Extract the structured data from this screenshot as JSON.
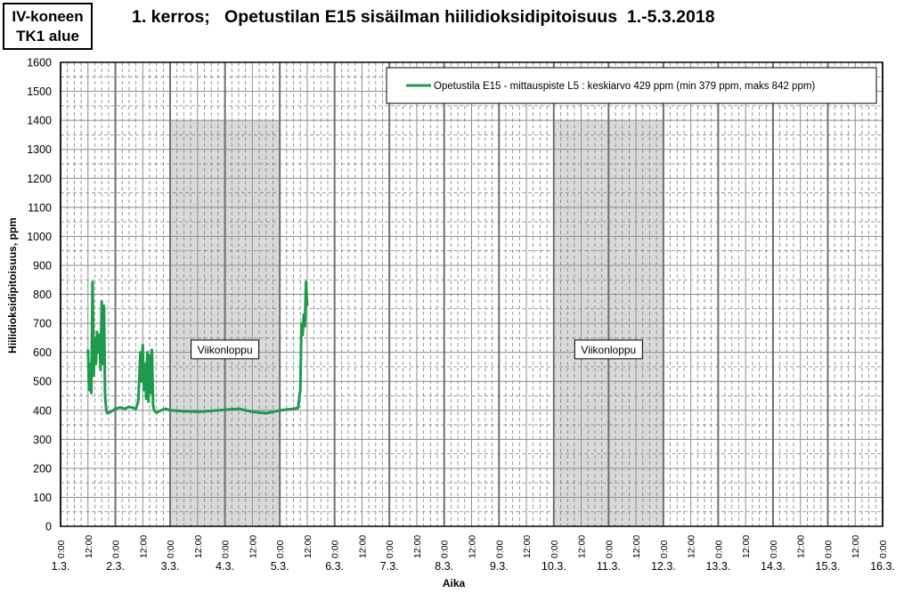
{
  "badge": {
    "line1": "IV-koneen",
    "line2": "TK1 alue"
  },
  "chart_data": {
    "type": "line",
    "title": "1. kerros;   Opetustilan E15 sisäilman hiilidioksidipitoisuus  1.-5.3.2018",
    "xlabel": "Aika",
    "ylabel": "Hiilidioksidipitoisuus,  ppm",
    "ylim": [
      0,
      1600
    ],
    "yticks": [
      0,
      100,
      200,
      300,
      400,
      500,
      600,
      700,
      800,
      900,
      1000,
      1100,
      1200,
      1300,
      1400,
      1500,
      1600
    ],
    "xlim_days": [
      "1.3.",
      "16.3."
    ],
    "date_labels": [
      "1.3.",
      "2.3.",
      "3.3.",
      "4.3.",
      "5.3.",
      "6.3.",
      "7.3.",
      "8.3.",
      "9.3.",
      "10.3.",
      "11.3.",
      "12.3.",
      "13.3.",
      "14.3.",
      "15.3.",
      "16.3."
    ],
    "time_labels": [
      "0:00",
      "12:00"
    ],
    "grid": true,
    "legend_position": "top-right",
    "shaded_regions": [
      {
        "start": "3.3. 0:00",
        "end": "5.3. 0:00",
        "label": "Viikonloppu"
      },
      {
        "start": "10.3. 0:00",
        "end": "12.3. 0:00",
        "label": "Viikonloppu"
      }
    ],
    "series": [
      {
        "name": "Opetustila E15 - mittauspiste L5 : keskiarvo 429 ppm (min 379 ppm, maks 842 ppm)",
        "color": "#1e9a4c",
        "points": [
          [
            "1.3. 12:00",
            610
          ],
          [
            "1.3. 12:30",
            470
          ],
          [
            "1.3. 13:00",
            560
          ],
          [
            "1.3. 13:30",
            460
          ],
          [
            "1.3. 14:00",
            842
          ],
          [
            "1.3. 14:30",
            520
          ],
          [
            "1.3. 15:00",
            650
          ],
          [
            "1.3. 15:30",
            560
          ],
          [
            "1.3. 16:00",
            670
          ],
          [
            "1.3. 16:30",
            600
          ],
          [
            "1.3. 17:00",
            660
          ],
          [
            "1.3. 17:30",
            540
          ],
          [
            "1.3. 18:00",
            775
          ],
          [
            "1.3. 18:30",
            560
          ],
          [
            "1.3. 19:00",
            760
          ],
          [
            "1.3. 19:30",
            450
          ],
          [
            "1.3. 20:00",
            400
          ],
          [
            "1.3. 20:30",
            390
          ],
          [
            "1.3. 22:00",
            395
          ],
          [
            "2.3. 0:00",
            405
          ],
          [
            "2.3. 2:00",
            410
          ],
          [
            "2.3. 4:00",
            405
          ],
          [
            "2.3. 6:00",
            412
          ],
          [
            "2.3. 8:00",
            408
          ],
          [
            "2.3. 9:00",
            405
          ],
          [
            "2.3. 10:00",
            430
          ],
          [
            "2.3. 11:00",
            600
          ],
          [
            "2.3. 11:30",
            500
          ],
          [
            "2.3. 12:00",
            625
          ],
          [
            "2.3. 12:30",
            470
          ],
          [
            "2.3. 13:00",
            560
          ],
          [
            "2.3. 13:30",
            440
          ],
          [
            "2.3. 14:00",
            600
          ],
          [
            "2.3. 14:30",
            430
          ],
          [
            "2.3. 15:00",
            590
          ],
          [
            "2.3. 15:30",
            460
          ],
          [
            "2.3. 16:00",
            608
          ],
          [
            "2.3. 16:30",
            420
          ],
          [
            "2.3. 17:00",
            400
          ],
          [
            "2.3. 18:00",
            392
          ],
          [
            "2.3. 20:00",
            400
          ],
          [
            "2.3. 22:00",
            405
          ],
          [
            "3.3. 0:00",
            400
          ],
          [
            "3.3. 6:00",
            397
          ],
          [
            "3.3. 12:00",
            395
          ],
          [
            "3.3. 18:00",
            398
          ],
          [
            "4.3. 0:00",
            402
          ],
          [
            "4.3. 6:00",
            405
          ],
          [
            "4.3. 12:00",
            395
          ],
          [
            "4.3. 18:00",
            390
          ],
          [
            "5.3. 0:00",
            400
          ],
          [
            "5.3. 6:00",
            405
          ],
          [
            "5.3. 8:00",
            408
          ],
          [
            "5.3. 9:00",
            470
          ],
          [
            "5.3. 9:30",
            700
          ],
          [
            "5.3. 10:00",
            660
          ],
          [
            "5.3. 10:30",
            730
          ],
          [
            "5.3. 11:00",
            690
          ],
          [
            "5.3. 11:30",
            842
          ],
          [
            "5.3. 12:00",
            760
          ]
        ]
      }
    ]
  }
}
